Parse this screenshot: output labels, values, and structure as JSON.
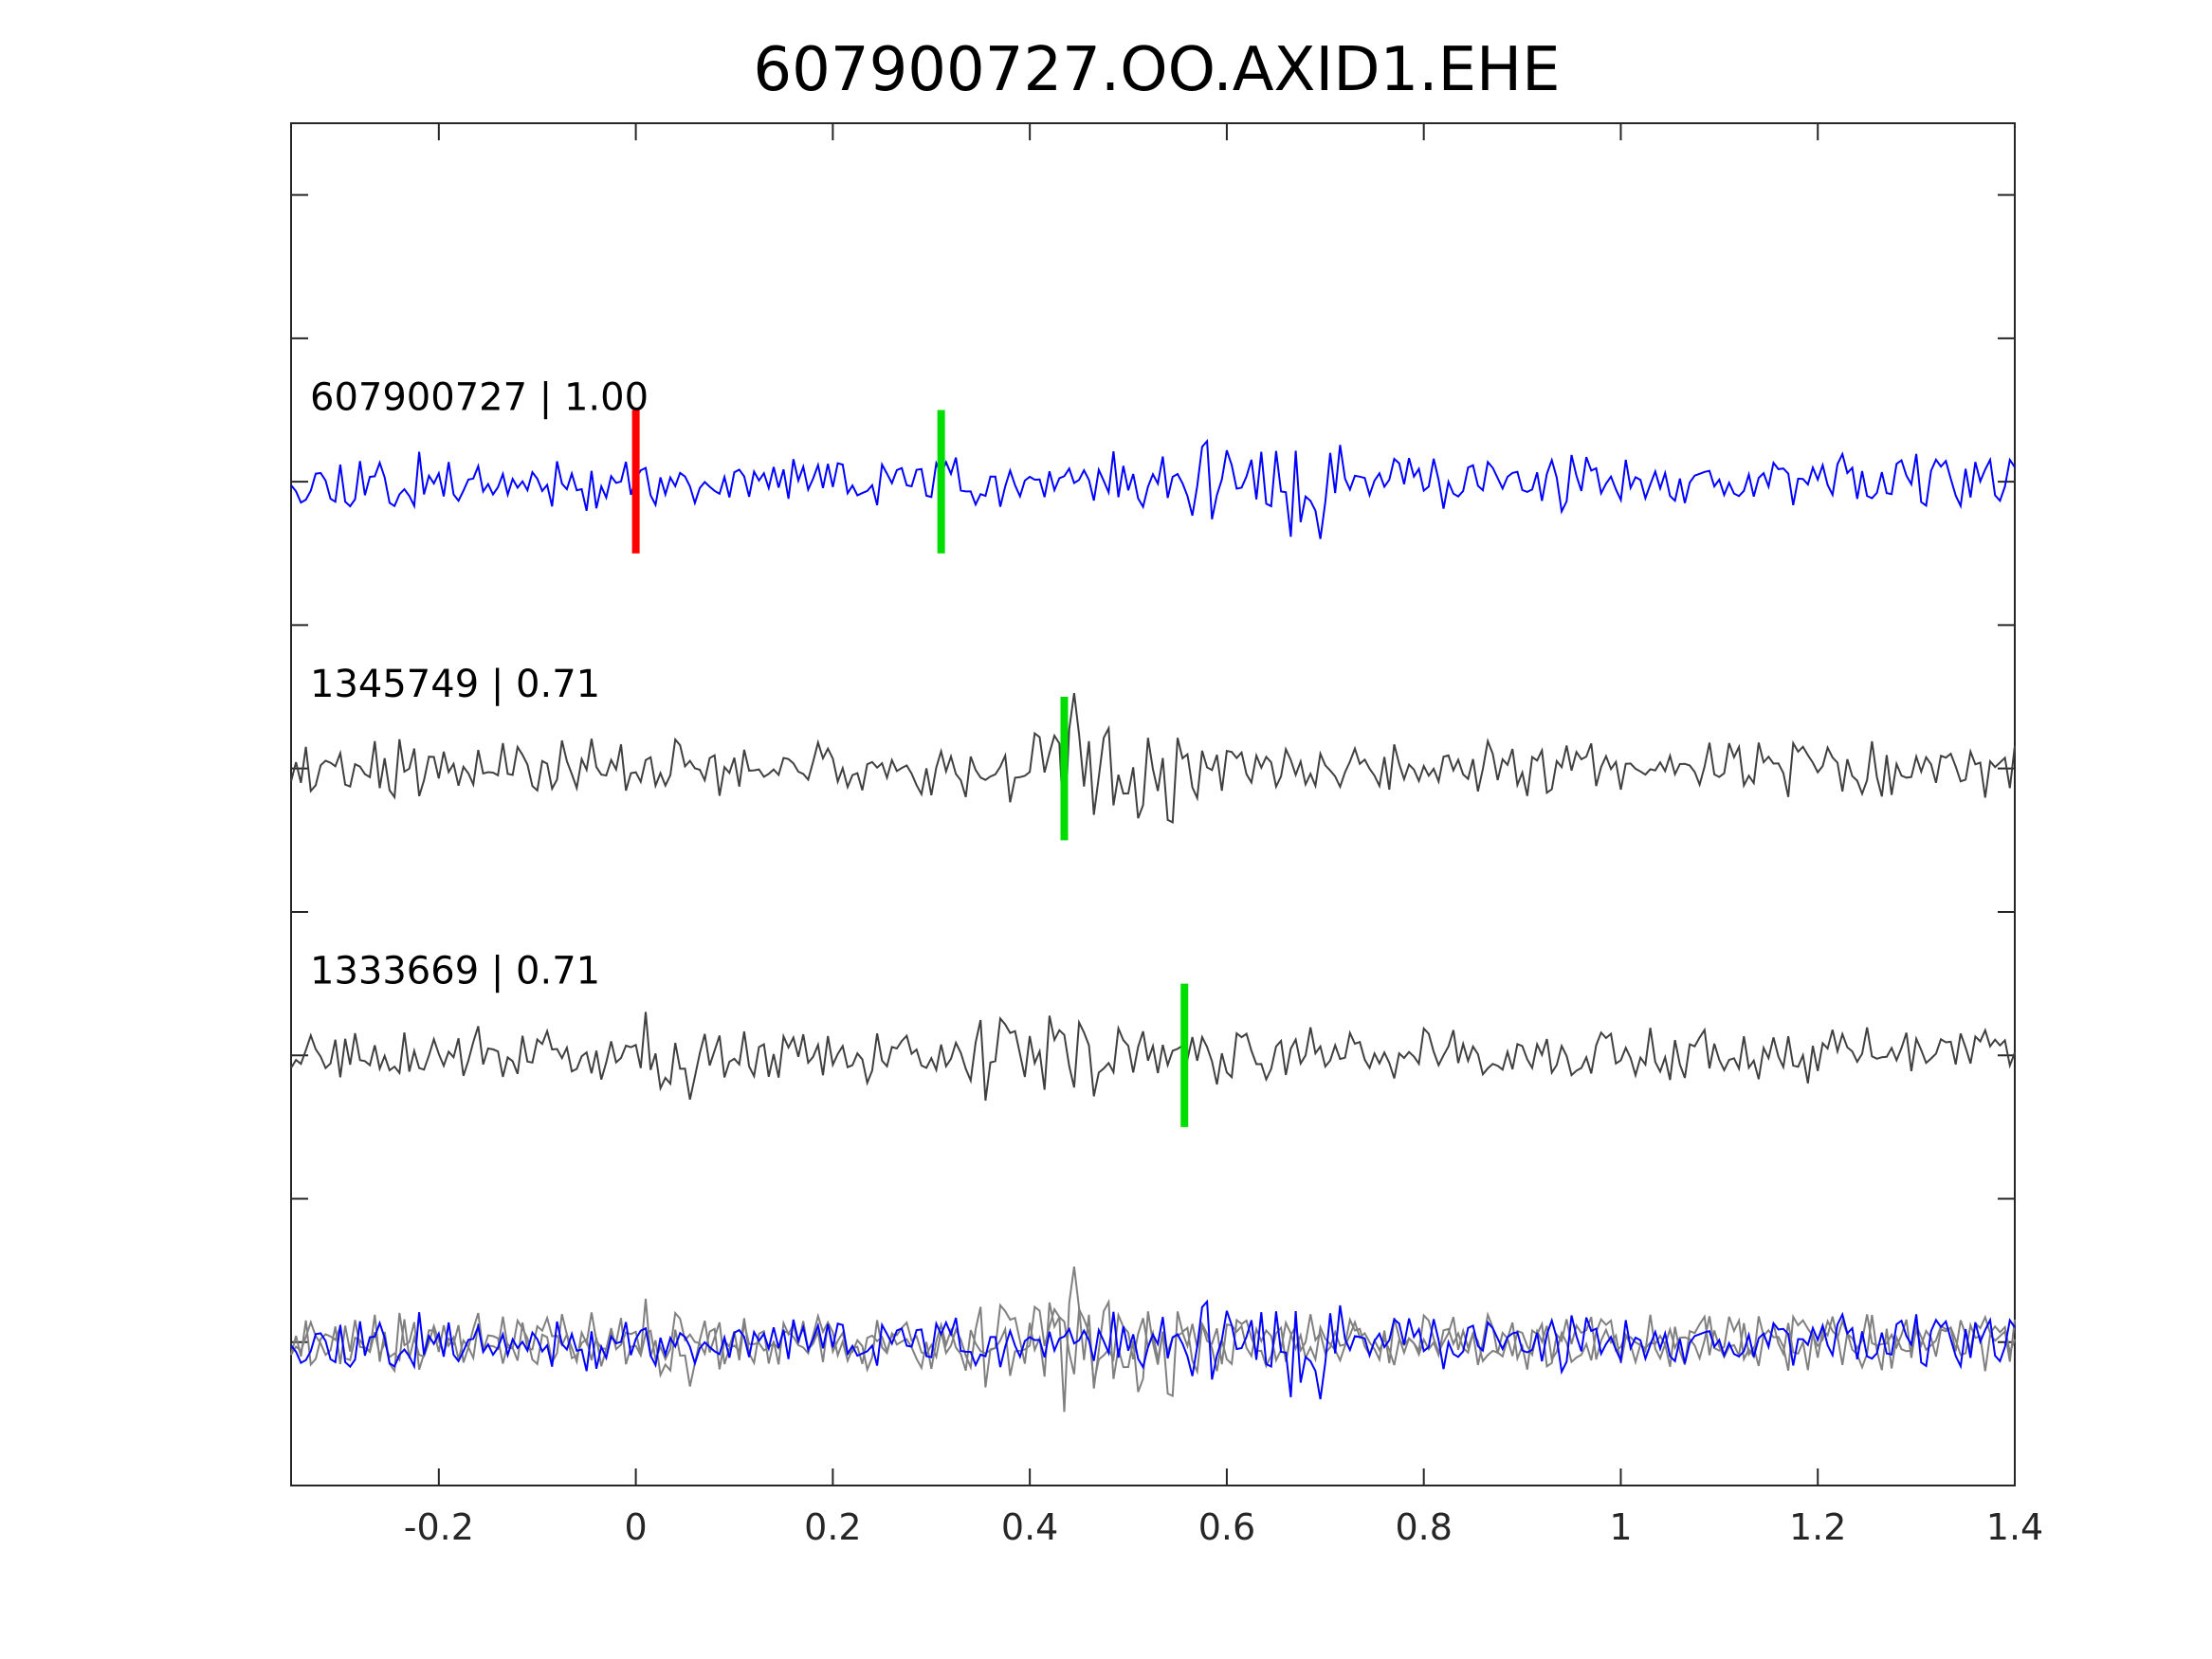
{
  "chart_data": {
    "type": "line",
    "title": "607900727.OO.AXID1.EHE",
    "xlabel": "",
    "ylabel": "",
    "xlim": [
      -0.35,
      1.4
    ],
    "xticks": [
      -0.2,
      0,
      0.2,
      0.4,
      0.6,
      0.8,
      1,
      1.2,
      1.4
    ],
    "xtick_labels": [
      "-0.2",
      "0",
      "0.2",
      "0.4",
      "0.6",
      "0.8",
      "1",
      "1.2",
      "1.4"
    ],
    "ylim": [
      0,
      9.5
    ],
    "yticks": [
      1,
      2,
      3,
      4,
      5,
      6,
      7,
      8,
      9
    ],
    "grid": false,
    "series": [
      {
        "label": "607900727 | 1.00",
        "baseline": 7,
        "color": "#0000ff",
        "seed": 11,
        "pick_markers": [
          {
            "x": 0.0,
            "color": "#ff0000"
          },
          {
            "x": 0.31,
            "color": "#00dd00"
          }
        ]
      },
      {
        "label": "1345749 | 0.71",
        "baseline": 5,
        "color": "#404040",
        "seed": 23,
        "pick_markers": [
          {
            "x": 0.435,
            "color": "#00dd00"
          }
        ]
      },
      {
        "label": "1333669 | 0.71",
        "baseline": 3,
        "color": "#404040",
        "seed": 37,
        "pick_markers": [
          {
            "x": 0.557,
            "color": "#00dd00"
          }
        ]
      }
    ],
    "overlay": {
      "baseline": 1,
      "colors": [
        "#0000ff",
        "#808080",
        "#808080"
      ]
    }
  }
}
